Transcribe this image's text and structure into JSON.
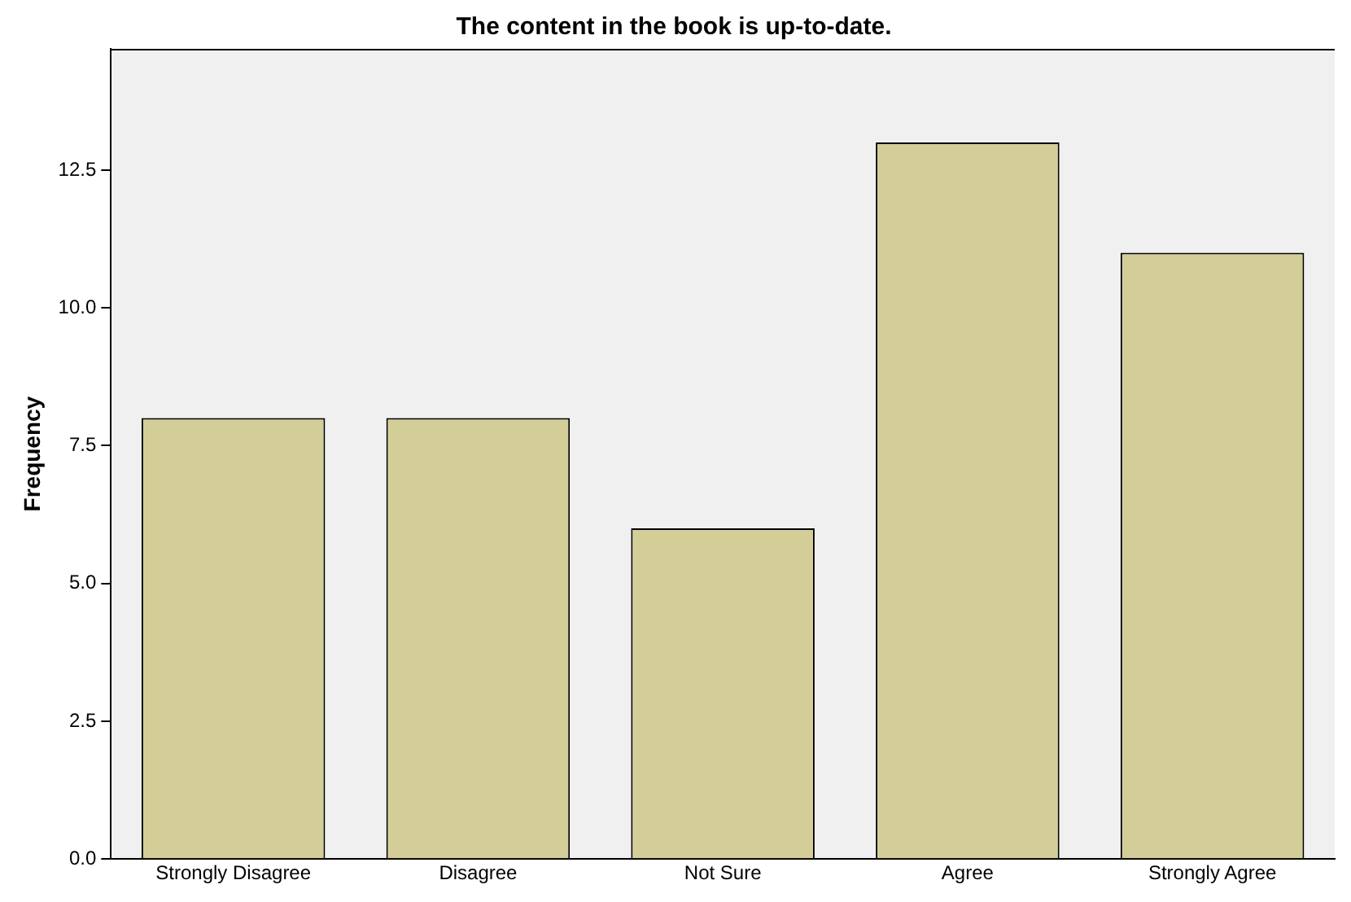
{
  "chart_data": {
    "type": "bar",
    "title": "The content in the book is up-to-date.",
    "ylabel": "Frequency",
    "categories": [
      "Strongly Disagree",
      "Disagree",
      "Not Sure",
      "Agree",
      "Strongly Agree"
    ],
    "values": [
      8,
      8,
      6,
      13,
      11
    ],
    "color": "#d3ce97",
    "ylim": [
      0,
      14.7
    ],
    "yticks": [
      {
        "value": 0,
        "label": "0.0"
      },
      {
        "value": 2.5,
        "label": "2.5"
      },
      {
        "value": 5,
        "label": "5.0"
      },
      {
        "value": 7.5,
        "label": "7.5"
      },
      {
        "value": 10,
        "label": "10.0"
      },
      {
        "value": 12.5,
        "label": "12.5"
      }
    ],
    "grid": false,
    "legend": false
  }
}
